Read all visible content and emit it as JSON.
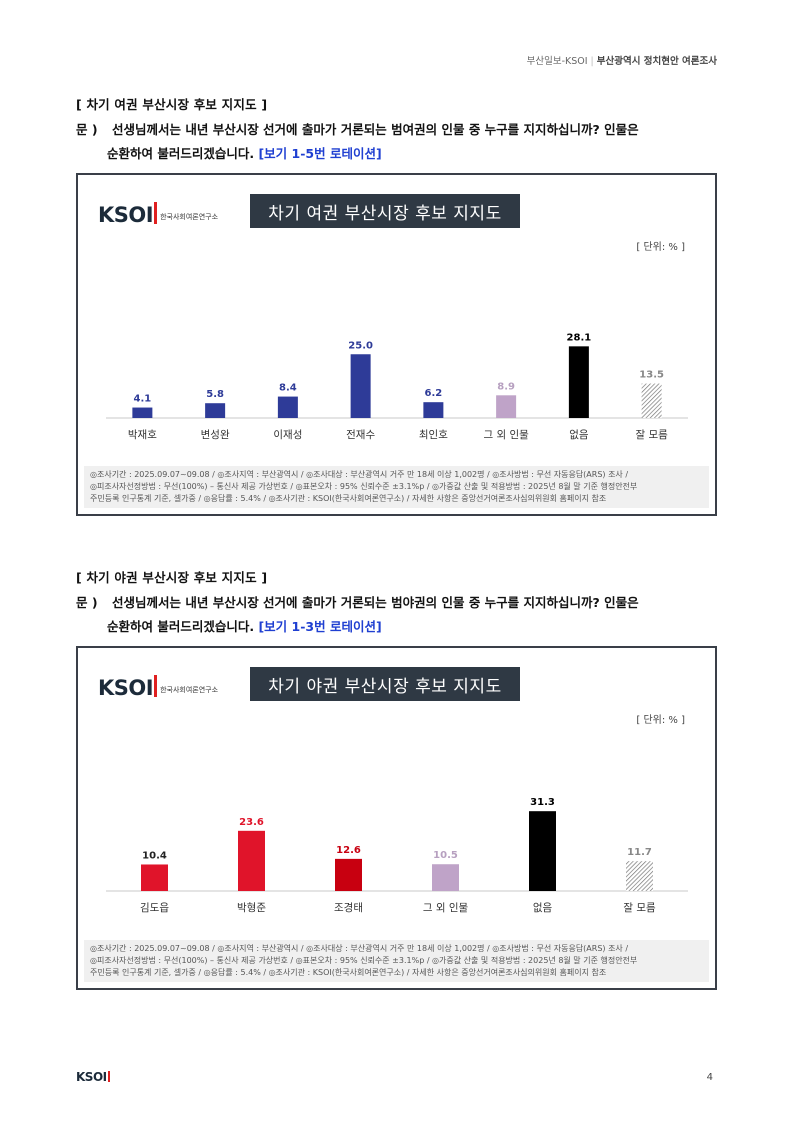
{
  "header": {
    "source": "부산일보-KSOI",
    "separator": "|",
    "title": "부산광역시 정치현안 여론조사"
  },
  "q1": {
    "title": "[ 차기 여권 부산시장 후보 지지도 ]",
    "mun": "문 )",
    "text1": "선생님께서는 내년 부산시장 선거에 출마가 거론되는 범여권의 인물 중 누구를 지지하십니까? 인물은",
    "text2": "순환하여 불러드리겠습니다.",
    "rotation": "[보기 1-5번 로테이션]"
  },
  "q2": {
    "title": "[ 차기 야권 부산시장 후보 지지도 ]",
    "mun": "문 )",
    "text1": "선생님께서는 내년 부산시장 선거에 출마가 거론되는 범야권의 인물 중 누구를 지지하십니까? 인물은",
    "text2": "순환하여 불러드리겠습니다.",
    "rotation": "[보기 1-3번 로테이션]"
  },
  "logo": {
    "text": "KSOI",
    "sub": "한국사회여론연구소"
  },
  "unit": "[ 단위: % ]",
  "footnote": {
    "line1": "◎조사기간 : 2025.09.07~09.08 / ◎조사지역 : 부산광역시 / ◎조사대상 : 부산광역시 거주 만 18세 이상 1,002명 / ◎조사방법 : 무선 자동응답(ARS) 조사 /",
    "line2": "◎피조사자선정방법 : 무선(100%) – 통신사 제공 가상번호 / ◎표본오차 : 95% 신뢰수준 ±3.1%p / ◎가중값 산출 및 적용방법 : 2025년 8월 말 기준 행정안전부",
    "line3": "주민등록 인구통계 기준, 셀가중 / ◎응답률 : 5.4% / ◎조사기관 : KSOI(한국사회여론연구소) / 자세한 사항은 중앙선거여론조사심의위원회 홈페이지 참조"
  },
  "chart_data": [
    {
      "type": "bar",
      "title": "차기 여권 부산시장 후보 지지도",
      "categories": [
        "박재호",
        "변성완",
        "이재성",
        "전재수",
        "최인호",
        "그 외 인물",
        "없음",
        "잘 모름"
      ],
      "values": [
        4.1,
        5.8,
        8.4,
        25.0,
        6.2,
        8.9,
        28.1,
        13.5
      ],
      "labels": [
        "4.1",
        "5.8",
        "8.4",
        "25.0",
        "6.2",
        "8.9",
        "28.1",
        "13.5"
      ],
      "colors": [
        "#2e3b98",
        "#2e3b98",
        "#2e3b98",
        "#2e3b98",
        "#2e3b98",
        "#bfa3c8",
        "#000000",
        "hatch"
      ],
      "label_colors": [
        "#2e3b98",
        "#2e3b98",
        "#2e3b98",
        "#2e3b98",
        "#2e3b98",
        "#b7a0c0",
        "#000000",
        "#888888"
      ],
      "unit": "%"
    },
    {
      "type": "bar",
      "title": "차기 야권 부산시장 후보 지지도",
      "categories": [
        "김도읍",
        "박형준",
        "조경태",
        "그 외 인물",
        "없음",
        "잘 모름"
      ],
      "values": [
        10.4,
        23.6,
        12.6,
        10.5,
        31.3,
        11.7
      ],
      "labels": [
        "10.4",
        "23.6",
        "12.6",
        "10.5",
        "31.3",
        "11.7"
      ],
      "colors": [
        "#e0142a",
        "#e0142a",
        "#c80010",
        "#bfa3c8",
        "#000000",
        "hatch"
      ],
      "label_colors": [
        "#222222",
        "#e0142a",
        "#c80010",
        "#b7a0c0",
        "#000000",
        "#888888"
      ],
      "unit": "%"
    }
  ],
  "page_number": "4"
}
